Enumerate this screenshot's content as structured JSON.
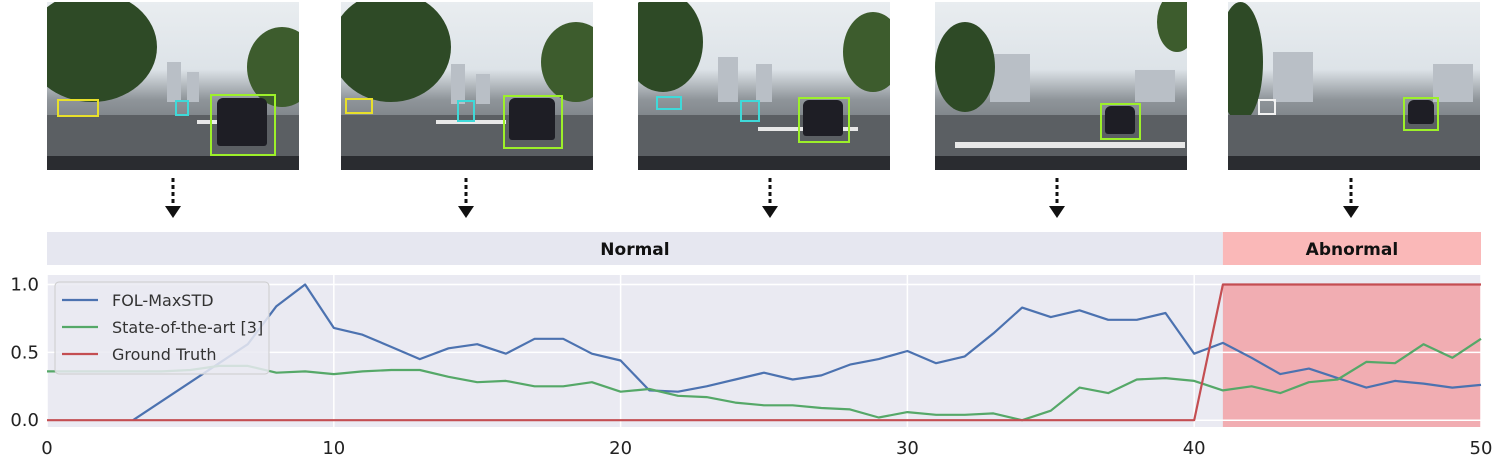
{
  "bands": {
    "normal_label": "Normal",
    "abnormal_label": "Abnormal"
  },
  "colors": {
    "fol": "#4c72b0",
    "sota": "#55a868",
    "gt": "#c44e52",
    "band_normal": "#e6e7f0",
    "band_abnormal": "#fab8b8",
    "plot_bg": "#eaeaf2",
    "abnormal_shade": "#f2a2a7"
  },
  "chart_data": {
    "type": "line",
    "x": [
      0,
      1,
      2,
      3,
      4,
      5,
      6,
      7,
      8,
      9,
      10,
      11,
      12,
      13,
      14,
      15,
      16,
      17,
      18,
      19,
      20,
      21,
      22,
      23,
      24,
      25,
      26,
      27,
      28,
      29,
      30,
      31,
      32,
      33,
      34,
      35,
      36,
      37,
      38,
      39,
      40,
      41,
      42,
      43,
      44,
      45,
      46,
      47,
      48,
      49,
      50
    ],
    "series": [
      {
        "name": "FOL-MaxSTD",
        "values": [
          null,
          null,
          null,
          0.0,
          0.14,
          0.28,
          0.42,
          0.56,
          0.84,
          1.0,
          0.68,
          0.63,
          0.54,
          0.45,
          0.53,
          0.56,
          0.49,
          0.6,
          0.6,
          0.49,
          0.44,
          0.22,
          0.21,
          0.25,
          0.3,
          0.35,
          0.3,
          0.33,
          0.41,
          0.45,
          0.51,
          0.42,
          0.47,
          0.64,
          0.83,
          0.76,
          0.81,
          0.74,
          0.74,
          0.79,
          0.49,
          0.57,
          0.46,
          0.34,
          0.38,
          0.31,
          0.24,
          0.29,
          0.27,
          0.24,
          0.26
        ]
      },
      {
        "name": "State-of-the-art [3]",
        "values": [
          0.36,
          0.36,
          0.36,
          0.36,
          0.36,
          0.37,
          0.4,
          0.4,
          0.35,
          0.36,
          0.34,
          0.36,
          0.37,
          0.37,
          0.32,
          0.28,
          0.29,
          0.25,
          0.25,
          0.28,
          0.21,
          0.23,
          0.18,
          0.17,
          0.13,
          0.11,
          0.11,
          0.09,
          0.08,
          0.02,
          0.06,
          0.04,
          0.04,
          0.05,
          0.0,
          0.07,
          0.24,
          0.2,
          0.3,
          0.31,
          0.29,
          0.22,
          0.25,
          0.2,
          0.28,
          0.3,
          0.43,
          0.42,
          0.56,
          0.46,
          0.6
        ]
      },
      {
        "name": "Ground Truth",
        "values": [
          0,
          0,
          0,
          0,
          0,
          0,
          0,
          0,
          0,
          0,
          0,
          0,
          0,
          0,
          0,
          0,
          0,
          0,
          0,
          0,
          0,
          0,
          0,
          0,
          0,
          0,
          0,
          0,
          0,
          0,
          0,
          0,
          0,
          0,
          0,
          0,
          0,
          0,
          0,
          0,
          0,
          1,
          1,
          1,
          1,
          1,
          1,
          1,
          1,
          1,
          1
        ]
      }
    ],
    "normal_range": [
      0,
      41
    ],
    "abnormal_range": [
      41,
      50
    ],
    "xlim": [
      0,
      50
    ],
    "ylim": [
      -0.05,
      1.07
    ],
    "xticks": [
      "0",
      "10",
      "20",
      "30",
      "40",
      "50"
    ],
    "yticks": [
      "0.0",
      "0.5",
      "1.0"
    ],
    "legend_location": "upper-left",
    "grid": true
  }
}
